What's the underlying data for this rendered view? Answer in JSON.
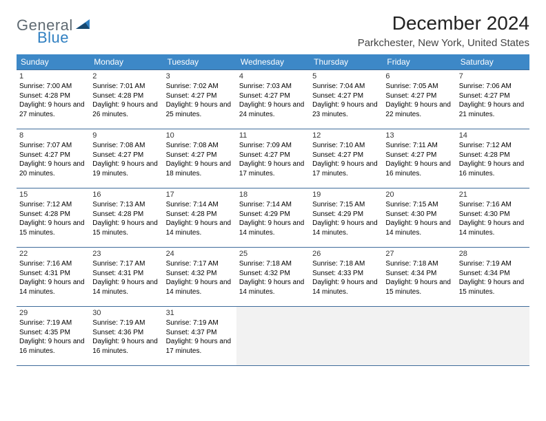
{
  "logo": {
    "part1": "General",
    "part2": "Blue"
  },
  "title": "December 2024",
  "location": "Parkchester, New York, United States",
  "colors": {
    "header_bg": "#3d88c7",
    "header_text": "#ffffff",
    "row_border": "#3d6a99",
    "empty_bg": "#f2f2f2",
    "logo_gray": "#5f6a72",
    "logo_blue": "#2f7fc1",
    "logo_dark_blue": "#17486f"
  },
  "typography": {
    "title_fontsize": 28,
    "location_fontsize": 15,
    "weekday_fontsize": 12,
    "daynum_fontsize": 11,
    "info_fontsize": 10
  },
  "calendar": {
    "type": "table",
    "columns": [
      "Sunday",
      "Monday",
      "Tuesday",
      "Wednesday",
      "Thursday",
      "Friday",
      "Saturday"
    ],
    "weeks": [
      [
        {
          "day": "1",
          "sunrise": "7:00 AM",
          "sunset": "4:28 PM",
          "daylight": "9 hours and 27 minutes."
        },
        {
          "day": "2",
          "sunrise": "7:01 AM",
          "sunset": "4:28 PM",
          "daylight": "9 hours and 26 minutes."
        },
        {
          "day": "3",
          "sunrise": "7:02 AM",
          "sunset": "4:27 PM",
          "daylight": "9 hours and 25 minutes."
        },
        {
          "day": "4",
          "sunrise": "7:03 AM",
          "sunset": "4:27 PM",
          "daylight": "9 hours and 24 minutes."
        },
        {
          "day": "5",
          "sunrise": "7:04 AM",
          "sunset": "4:27 PM",
          "daylight": "9 hours and 23 minutes."
        },
        {
          "day": "6",
          "sunrise": "7:05 AM",
          "sunset": "4:27 PM",
          "daylight": "9 hours and 22 minutes."
        },
        {
          "day": "7",
          "sunrise": "7:06 AM",
          "sunset": "4:27 PM",
          "daylight": "9 hours and 21 minutes."
        }
      ],
      [
        {
          "day": "8",
          "sunrise": "7:07 AM",
          "sunset": "4:27 PM",
          "daylight": "9 hours and 20 minutes."
        },
        {
          "day": "9",
          "sunrise": "7:08 AM",
          "sunset": "4:27 PM",
          "daylight": "9 hours and 19 minutes."
        },
        {
          "day": "10",
          "sunrise": "7:08 AM",
          "sunset": "4:27 PM",
          "daylight": "9 hours and 18 minutes."
        },
        {
          "day": "11",
          "sunrise": "7:09 AM",
          "sunset": "4:27 PM",
          "daylight": "9 hours and 17 minutes."
        },
        {
          "day": "12",
          "sunrise": "7:10 AM",
          "sunset": "4:27 PM",
          "daylight": "9 hours and 17 minutes."
        },
        {
          "day": "13",
          "sunrise": "7:11 AM",
          "sunset": "4:27 PM",
          "daylight": "9 hours and 16 minutes."
        },
        {
          "day": "14",
          "sunrise": "7:12 AM",
          "sunset": "4:28 PM",
          "daylight": "9 hours and 16 minutes."
        }
      ],
      [
        {
          "day": "15",
          "sunrise": "7:12 AM",
          "sunset": "4:28 PM",
          "daylight": "9 hours and 15 minutes."
        },
        {
          "day": "16",
          "sunrise": "7:13 AM",
          "sunset": "4:28 PM",
          "daylight": "9 hours and 15 minutes."
        },
        {
          "day": "17",
          "sunrise": "7:14 AM",
          "sunset": "4:28 PM",
          "daylight": "9 hours and 14 minutes."
        },
        {
          "day": "18",
          "sunrise": "7:14 AM",
          "sunset": "4:29 PM",
          "daylight": "9 hours and 14 minutes."
        },
        {
          "day": "19",
          "sunrise": "7:15 AM",
          "sunset": "4:29 PM",
          "daylight": "9 hours and 14 minutes."
        },
        {
          "day": "20",
          "sunrise": "7:15 AM",
          "sunset": "4:30 PM",
          "daylight": "9 hours and 14 minutes."
        },
        {
          "day": "21",
          "sunrise": "7:16 AM",
          "sunset": "4:30 PM",
          "daylight": "9 hours and 14 minutes."
        }
      ],
      [
        {
          "day": "22",
          "sunrise": "7:16 AM",
          "sunset": "4:31 PM",
          "daylight": "9 hours and 14 minutes."
        },
        {
          "day": "23",
          "sunrise": "7:17 AM",
          "sunset": "4:31 PM",
          "daylight": "9 hours and 14 minutes."
        },
        {
          "day": "24",
          "sunrise": "7:17 AM",
          "sunset": "4:32 PM",
          "daylight": "9 hours and 14 minutes."
        },
        {
          "day": "25",
          "sunrise": "7:18 AM",
          "sunset": "4:32 PM",
          "daylight": "9 hours and 14 minutes."
        },
        {
          "day": "26",
          "sunrise": "7:18 AM",
          "sunset": "4:33 PM",
          "daylight": "9 hours and 14 minutes."
        },
        {
          "day": "27",
          "sunrise": "7:18 AM",
          "sunset": "4:34 PM",
          "daylight": "9 hours and 15 minutes."
        },
        {
          "day": "28",
          "sunrise": "7:19 AM",
          "sunset": "4:34 PM",
          "daylight": "9 hours and 15 minutes."
        }
      ],
      [
        {
          "day": "29",
          "sunrise": "7:19 AM",
          "sunset": "4:35 PM",
          "daylight": "9 hours and 16 minutes."
        },
        {
          "day": "30",
          "sunrise": "7:19 AM",
          "sunset": "4:36 PM",
          "daylight": "9 hours and 16 minutes."
        },
        {
          "day": "31",
          "sunrise": "7:19 AM",
          "sunset": "4:37 PM",
          "daylight": "9 hours and 17 minutes."
        },
        null,
        null,
        null,
        null
      ]
    ]
  }
}
